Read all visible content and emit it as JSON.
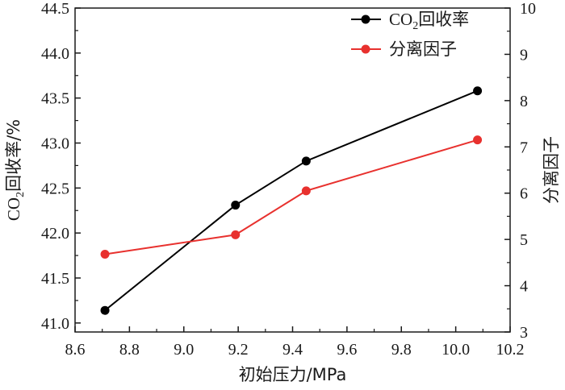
{
  "chart_data": {
    "type": "line",
    "xlabel": "初始压力/MPa",
    "ylabel_left": {
      "prefix": "CO",
      "sub": "2",
      "suffix": "回收率/%"
    },
    "ylabel_right": "分离因子",
    "xlim": [
      8.6,
      10.2
    ],
    "xticks": [
      "8.6",
      "8.8",
      "9.0",
      "9.2",
      "9.4",
      "9.6",
      "9.8",
      "10.0",
      "10.2"
    ],
    "ylim_left": [
      40.9,
      44.5
    ],
    "yticks_left": [
      "41.0",
      "41.5",
      "42.0",
      "42.5",
      "43.0",
      "43.5",
      "44.0",
      "44.5"
    ],
    "ylim_right": [
      3,
      10
    ],
    "yticks_right": [
      "3",
      "4",
      "5",
      "6",
      "7",
      "8",
      "9",
      "10"
    ],
    "legend_position": "top-right",
    "series": [
      {
        "name": {
          "prefix": "CO",
          "sub": "2",
          "suffix": "回收率"
        },
        "axis": "left",
        "color": "#000000",
        "x": [
          8.71,
          9.19,
          9.45,
          10.08
        ],
        "values": [
          41.14,
          42.31,
          42.8,
          43.58
        ]
      },
      {
        "name": "分离因子",
        "axis": "right",
        "color": "#e8312e",
        "x": [
          8.71,
          9.19,
          9.45,
          10.08
        ],
        "values": [
          4.68,
          5.1,
          6.05,
          7.15
        ]
      }
    ]
  }
}
